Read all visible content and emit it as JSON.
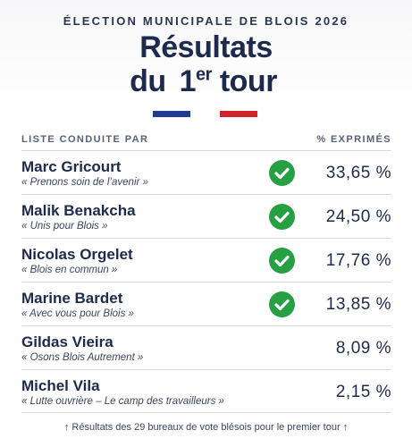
{
  "header": {
    "supertitle": "ÉLECTION MUNICIPALE DE BLOIS 2026",
    "title_line1": "Résultats",
    "title_du": "du",
    "title_tour_num": "1",
    "title_tour_sup": "er",
    "title_tour_word": "tour"
  },
  "flag_colors": [
    "#1f3a93",
    "#ffffff",
    "#d2232a"
  ],
  "table": {
    "col_left": "LISTE CONDUITE PAR",
    "col_right": "% EXPRIMÉS",
    "rows": [
      {
        "name": "Marc Gricourt",
        "slogan": "« Prenons soin de l’avenir »",
        "qualified": true,
        "pct": "33,65 %"
      },
      {
        "name": "Malik Benakcha",
        "slogan": "« Unis pour Blois »",
        "qualified": true,
        "pct": "24,50 %"
      },
      {
        "name": "Nicolas Orgelet",
        "slogan": "« Blois en commun »",
        "qualified": true,
        "pct": "17,76 %"
      },
      {
        "name": "Marine Bardet",
        "slogan": "« Avec vous pour Blois »",
        "qualified": true,
        "pct": "13,85 %"
      },
      {
        "name": "Gildas Vieira",
        "slogan": "« Osons Blois Autrement »",
        "qualified": false,
        "pct": "8,09 %"
      },
      {
        "name": "Michel Vila",
        "slogan": "« Lutte ouvrière – Le camp des travailleurs »",
        "qualified": false,
        "pct": "2,15 %"
      }
    ]
  },
  "check_color": "#27a043",
  "footer": "↑ Résultats des 29 bureaux de vote blésois pour le premier tour ↑"
}
